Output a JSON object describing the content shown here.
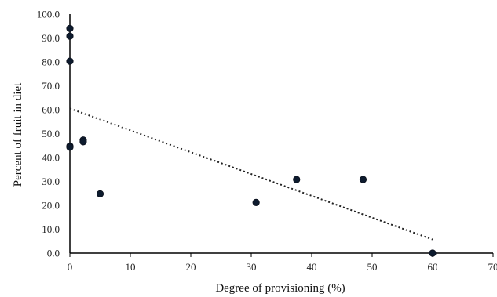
{
  "chart_data": {
    "type": "scatter",
    "title": "",
    "xlabel": "Degree of provisioning (%)",
    "ylabel": "Percent of fruit in diet",
    "xlim": [
      0,
      70
    ],
    "ylim": [
      0,
      100
    ],
    "x_ticks": [
      "0",
      "10",
      "20",
      "30",
      "40",
      "50",
      "60",
      "70"
    ],
    "y_ticks": [
      "0.0",
      "10.0",
      "20.0",
      "30.0",
      "40.0",
      "50.0",
      "60.0",
      "70.0",
      "80.0",
      "90.0",
      "100.0"
    ],
    "grid": false,
    "legend": false,
    "series": [
      {
        "marker_color": "#0d1b2e",
        "points": [
          {
            "x": 0,
            "y": 94.0
          },
          {
            "x": 0,
            "y": 90.8
          },
          {
            "x": 0,
            "y": 80.3
          },
          {
            "x": 0,
            "y": 44.8
          },
          {
            "x": 0,
            "y": 44.3
          },
          {
            "x": 2.2,
            "y": 47.3
          },
          {
            "x": 2.2,
            "y": 46.6
          },
          {
            "x": 5.0,
            "y": 24.8
          },
          {
            "x": 30.8,
            "y": 21.2
          },
          {
            "x": 37.5,
            "y": 30.8
          },
          {
            "x": 48.5,
            "y": 30.8
          },
          {
            "x": 60.0,
            "y": 0.0
          }
        ]
      }
    ],
    "trendline": {
      "style": "dotted",
      "color": "#222222",
      "x": [
        0,
        60
      ],
      "y": [
        60.5,
        5.7
      ]
    }
  }
}
